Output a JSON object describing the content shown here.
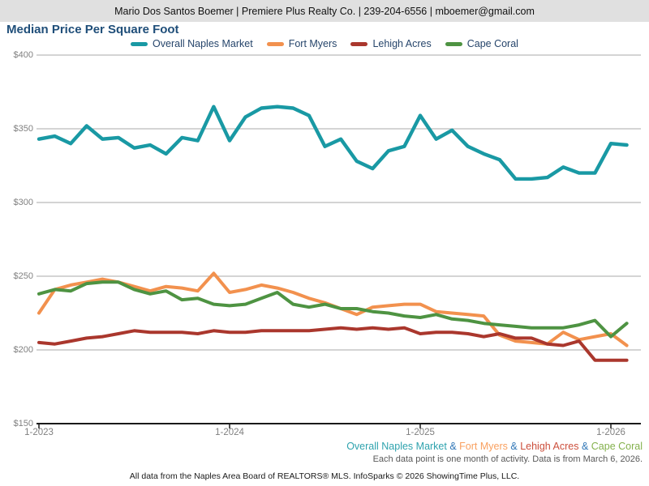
{
  "header": {
    "contact_line": "Mario Dos Santos Boemer | Premiere Plus Realty Co. | 239-204-6556 | mboemer@gmail.com"
  },
  "title": "Median Price Per Square Foot",
  "chart_data": {
    "type": "line",
    "title": "Median Price Per Square Foot",
    "xlabel": "",
    "ylabel": "",
    "grid": true,
    "legend_position": "top",
    "ylim": [
      150,
      400
    ],
    "y_ticks": [
      400,
      350,
      300,
      250,
      200,
      150
    ],
    "y_tick_labels": [
      "$400",
      "$350",
      "$300",
      "$250",
      "$200",
      "$150"
    ],
    "x": [
      "1-2023",
      "2-2023",
      "3-2023",
      "4-2023",
      "5-2023",
      "6-2023",
      "7-2023",
      "8-2023",
      "9-2023",
      "10-2023",
      "11-2023",
      "12-2023",
      "1-2024",
      "2-2024",
      "3-2024",
      "4-2024",
      "5-2024",
      "6-2024",
      "7-2024",
      "8-2024",
      "9-2024",
      "10-2024",
      "11-2024",
      "12-2024",
      "1-2025",
      "2-2025",
      "3-2025",
      "4-2025",
      "5-2025",
      "6-2025",
      "7-2025",
      "8-2025",
      "9-2025",
      "10-2025",
      "11-2025",
      "12-2025",
      "1-2026",
      "2-2026"
    ],
    "x_tick_indices": [
      0,
      12,
      24,
      36
    ],
    "x_tick_labels": [
      "1-2023",
      "1-2024",
      "1-2025",
      "1-2026"
    ],
    "series": [
      {
        "name": "Overall Naples Market",
        "color": "#1999a4",
        "footer_color": "#2fa3ae",
        "values": [
          343,
          345,
          340,
          352,
          343,
          344,
          337,
          339,
          333,
          344,
          342,
          365,
          342,
          358,
          364,
          365,
          364,
          359,
          338,
          343,
          328,
          323,
          335,
          338,
          359,
          343,
          349,
          338,
          333,
          329,
          316,
          316,
          317,
          324,
          320,
          320,
          340,
          339
        ]
      },
      {
        "name": "Fort Myers",
        "color": "#f2914e",
        "footer_color": "#f9a05f",
        "values": [
          225,
          241,
          244,
          246,
          248,
          246,
          243,
          240,
          243,
          242,
          240,
          252,
          239,
          241,
          244,
          242,
          239,
          235,
          232,
          228,
          224,
          229,
          230,
          231,
          231,
          226,
          225,
          224,
          223,
          210,
          206,
          205,
          204,
          212,
          207,
          209,
          211,
          203
        ]
      },
      {
        "name": "Lehigh Acres",
        "color": "#aa372d",
        "footer_color": "#cc4f3c",
        "values": [
          205,
          204,
          206,
          208,
          209,
          211,
          213,
          212,
          212,
          212,
          211,
          213,
          212,
          212,
          213,
          213,
          213,
          213,
          214,
          215,
          214,
          215,
          214,
          215,
          211,
          212,
          212,
          211,
          209,
          211,
          208,
          208,
          204,
          203,
          206,
          193,
          193,
          193
        ]
      },
      {
        "name": "Cape Coral",
        "color": "#4e9342",
        "footer_color": "#84b14d",
        "values": [
          238,
          241,
          240,
          245,
          246,
          246,
          241,
          238,
          240,
          234,
          235,
          231,
          230,
          231,
          235,
          239,
          231,
          229,
          231,
          228,
          228,
          226,
          225,
          223,
          222,
          224,
          221,
          220,
          218,
          217,
          216,
          215,
          215,
          215,
          217,
          220,
          209,
          218
        ]
      }
    ]
  },
  "footer": {
    "separator": "&",
    "separator_color": "#2e75b6",
    "note": "Each data point is one month of activity. Data is from March 6, 2026.",
    "attribution": "All data from the Naples Area Board of REALTORS® MLS. InfoSparks © 2026 ShowingTime Plus, LLC."
  }
}
